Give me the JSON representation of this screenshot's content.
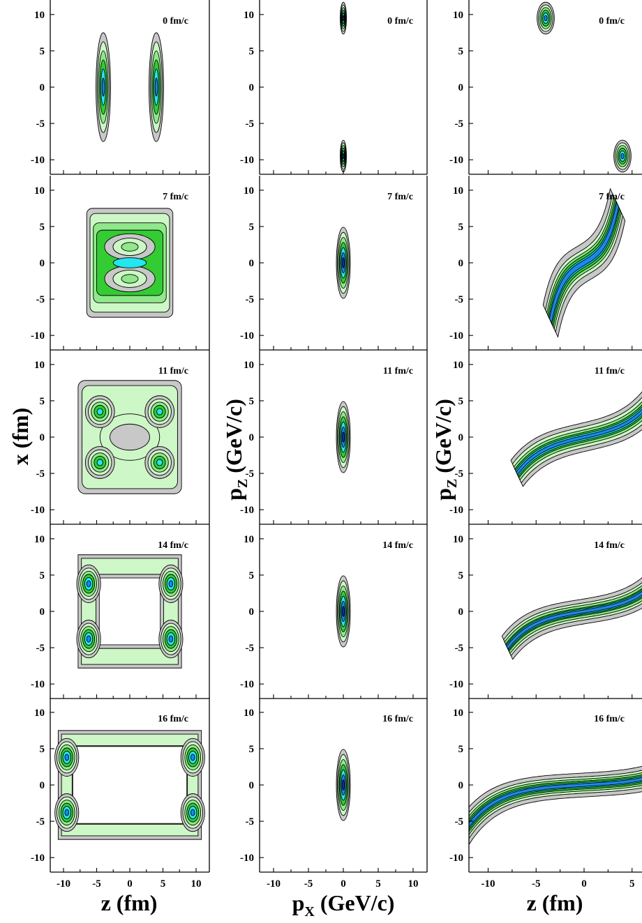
{
  "colors": {
    "level1": "#c8c8c8",
    "level2": "#cdf7c6",
    "level3": "#8fe88a",
    "level4": "#33cc33",
    "level5": "#22e6f0",
    "level6": "#1f86ea",
    "level7": "#1230c8",
    "line": "#000000"
  },
  "axis_labels": {
    "col1_x": "z (fm)",
    "col1_y": "x (fm)",
    "col2_x_main": "p",
    "col2_x_sub": "X",
    "col2_x_unit": " (GeV/c)",
    "col2_y_main": "p",
    "col2_y_sub": "Z",
    "col2_y_unit": " (GeV/c)",
    "col3_x": "z (fm)",
    "col3_y_main": "p",
    "col3_y_sub": "Z",
    "col3_y_unit": " (GeV/c)"
  },
  "chart_data": [
    {
      "type": "heatmap",
      "panel_grid": "5 rows x 3 columns",
      "columns": [
        {
          "x_quantity": "z (fm)",
          "y_quantity": "x (fm)"
        },
        {
          "x_quantity": "p_x (GeV/c)",
          "y_quantity": "p_z (GeV/c)"
        },
        {
          "x_quantity": "z (fm)",
          "y_quantity": "p_z (GeV/c)"
        }
      ],
      "time_labels": [
        "0 fm/c",
        "7 fm/c",
        "11 fm/c",
        "14 fm/c",
        "16 fm/c"
      ],
      "x_ticks": [
        "-10",
        "-5",
        "0",
        "5",
        "10"
      ],
      "y_ticks": [
        "10",
        "5",
        "0",
        "-5",
        "-10"
      ],
      "xlim": [
        -12,
        12
      ],
      "ylim": [
        -12,
        12
      ],
      "contour_levels": 7,
      "description_of_blobs": [
        [
          {
            "col": 1,
            "blobs": [
              [
                -4,
                0,
                1.1,
                7.5
              ],
              [
                4,
                0,
                1.1,
                7.5
              ]
            ]
          },
          {
            "col": 2,
            "blobs": [
              [
                0,
                9.5,
                0.45,
                2.2
              ],
              [
                0,
                -9.5,
                0.45,
                2.2
              ]
            ]
          },
          {
            "col": 3,
            "blobs": [
              [
                -4,
                9.5,
                0.9,
                2.2
              ],
              [
                4,
                -9.5,
                0.9,
                2.2
              ]
            ]
          }
        ]
      ]
    }
  ]
}
